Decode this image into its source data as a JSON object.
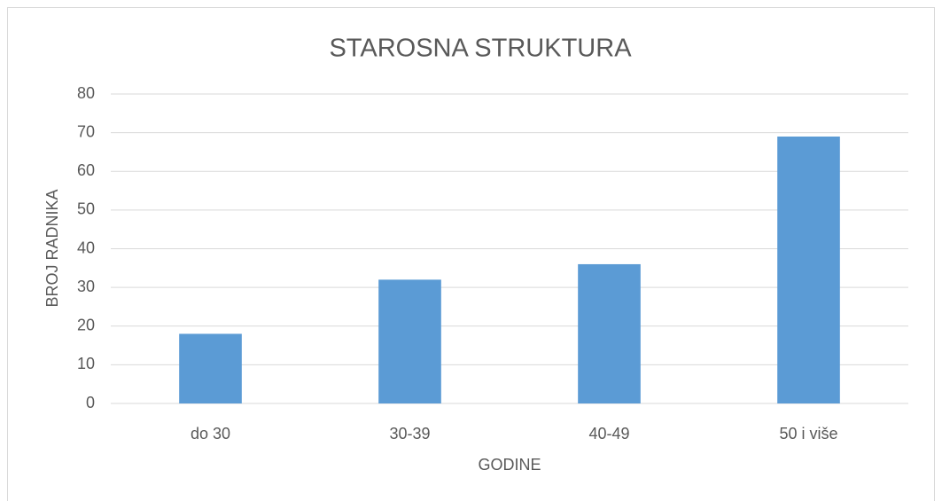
{
  "chart_data": {
    "type": "bar",
    "title": "STAROSNA STRUKTURA",
    "x_label": "GODINE",
    "y_label": "BROJ RADNIKA",
    "categories": [
      "do 30",
      "30-39",
      "40-49",
      "50 i više"
    ],
    "values": [
      18,
      32,
      36,
      69
    ],
    "color": "#5b9bd5",
    "ylim": [
      0,
      80
    ],
    "yticks": [
      0,
      10,
      20,
      30,
      40,
      50,
      60,
      70,
      80
    ],
    "grid": true
  }
}
